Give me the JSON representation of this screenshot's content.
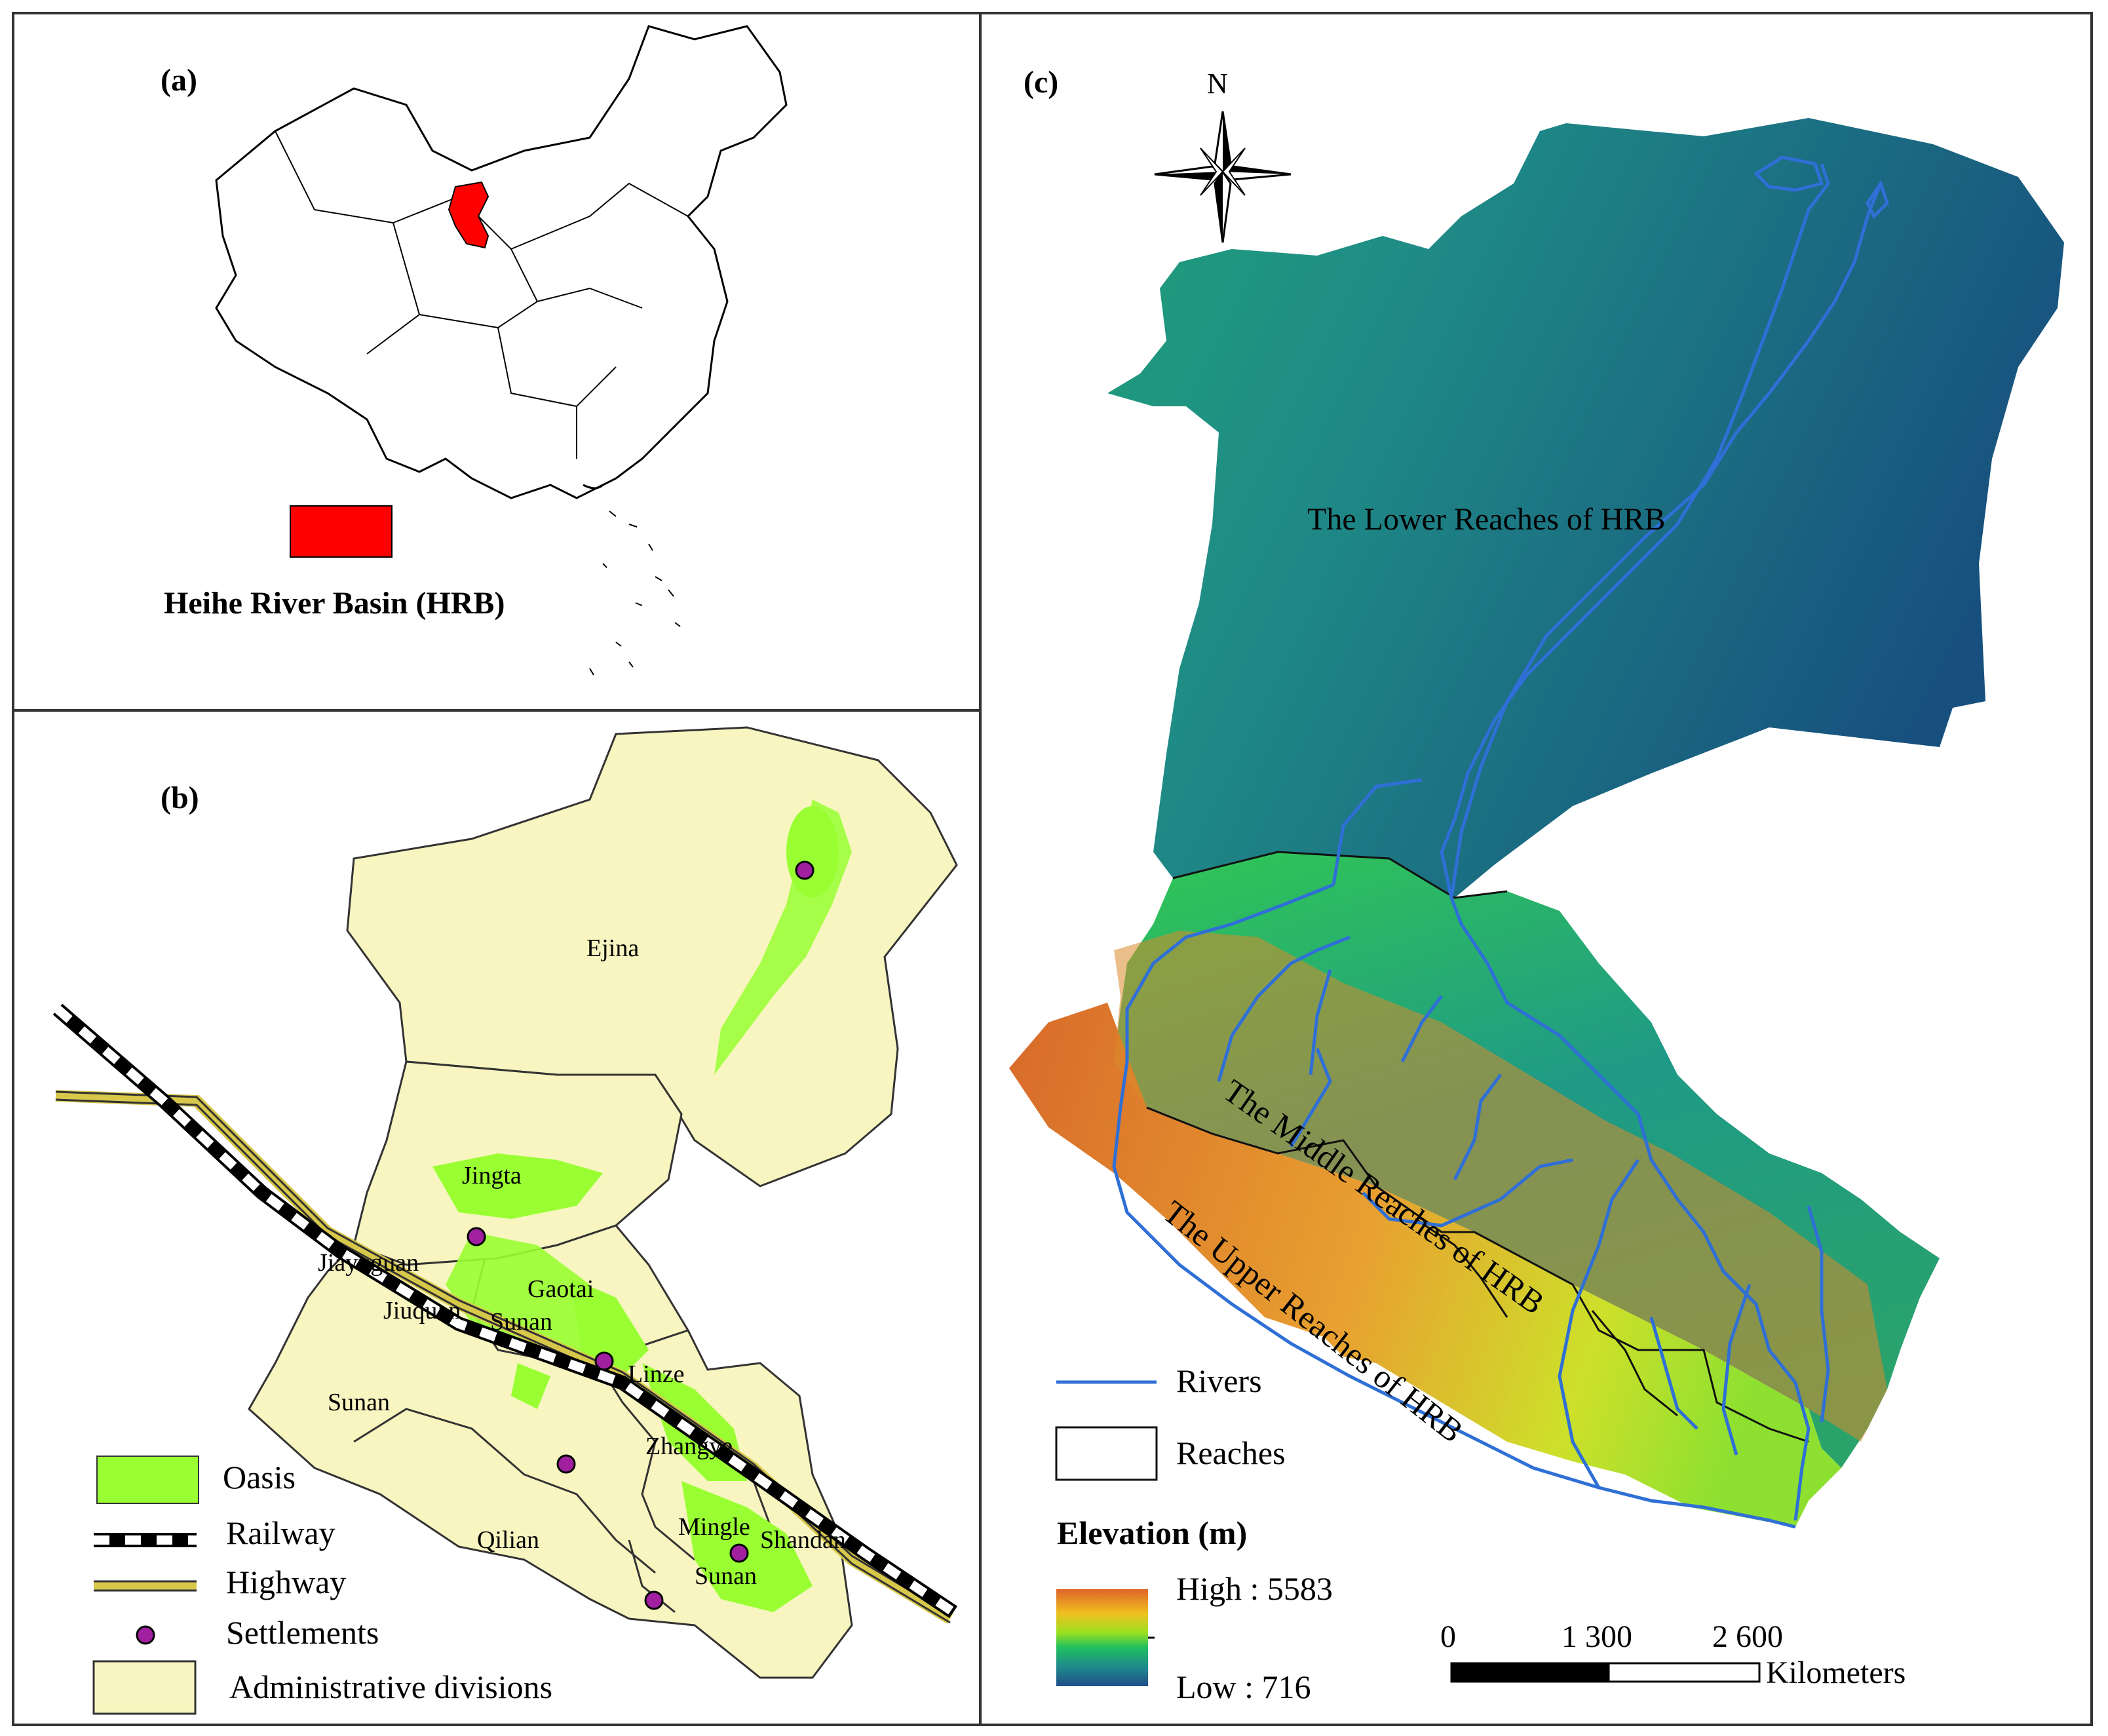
{
  "panels": {
    "a": {
      "label": "(a)",
      "legend_label": "Heihe River Basin (HRB)",
      "highlight_color": "#ff0000"
    },
    "b": {
      "label": "(b)",
      "places": [
        "Ejina",
        "Jingta",
        "Jiayuguan",
        "Jiuquan",
        "Gaotai",
        "Sunan",
        "Linze",
        "Sunan",
        "Zhangye",
        "Qilian",
        "Mingle",
        "Shandan",
        "Sunan"
      ],
      "legend": {
        "oasis": "Oasis",
        "railway": "Railway",
        "highway": "Highway",
        "settlements": "Settlements",
        "admin": "Administrative divisions"
      },
      "colors": {
        "oasis": "#99ff33",
        "admin": "#f8f5c0",
        "settlement": "#a020a0"
      }
    },
    "c": {
      "label": "(c)",
      "north": "N",
      "regions": {
        "lower": "The Lower Reaches of HRB",
        "middle": "The Middle Reaches of HRB",
        "upper": "The Upper Reaches of HRB"
      },
      "legend": {
        "rivers": "Rivers",
        "reaches": "Reaches",
        "elevation_title": "Elevation (m)",
        "high": "High : 5583",
        "low": "Low : 716"
      },
      "scale": {
        "ticks": [
          "0",
          "1 300",
          "2 600"
        ],
        "unit": "Kilometers"
      },
      "colors": {
        "river": "#2f6fd6",
        "lowland": "#1f6f9a",
        "highland": "#e07020"
      }
    }
  }
}
